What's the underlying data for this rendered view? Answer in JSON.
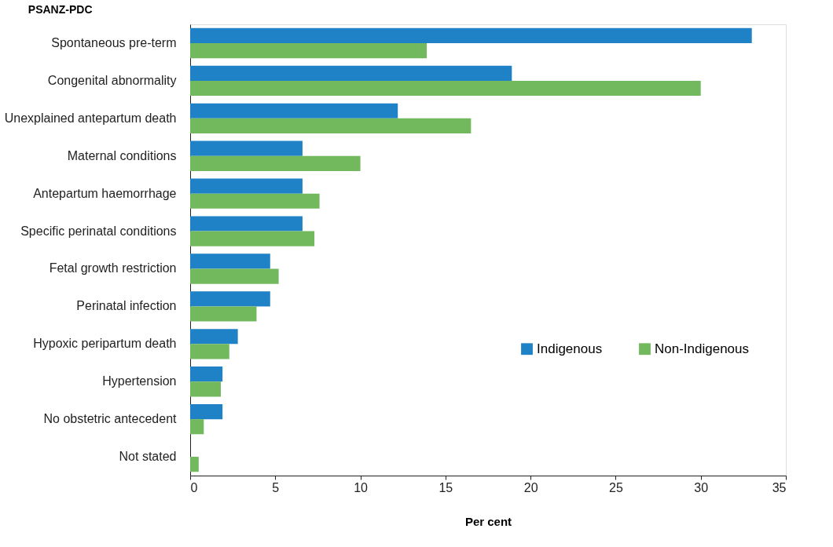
{
  "chart_data": {
    "type": "bar",
    "orientation": "horizontal",
    "ylabel": "PSANZ-PDC",
    "xlabel": "Per cent",
    "categories": [
      "Spontaneous pre-term",
      "Congenital abnormality",
      "Unexplained antepartum death",
      "Maternal conditions",
      "Antepartum haemorrhage",
      "Specific perinatal conditions",
      "Fetal growth restriction",
      "Perinatal infection",
      "Hypoxic peripartum death",
      "Hypertension",
      "No obstetric antecedent",
      "Not stated"
    ],
    "series": [
      {
        "name": "Indigenous",
        "color": "#1f82c6",
        "values": [
          33.0,
          18.9,
          12.2,
          6.6,
          6.6,
          6.6,
          4.7,
          4.7,
          2.8,
          1.9,
          1.9,
          null
        ]
      },
      {
        "name": "Non-Indigenous",
        "color": "#72b85c",
        "values": [
          13.9,
          30.0,
          16.5,
          10.0,
          7.6,
          7.3,
          5.2,
          3.9,
          2.3,
          1.8,
          0.8,
          0.5
        ]
      }
    ],
    "xlim": [
      0,
      35
    ],
    "xticks": [
      0,
      5,
      10,
      15,
      20,
      25,
      30,
      35
    ],
    "grid": false,
    "legend": "right"
  }
}
